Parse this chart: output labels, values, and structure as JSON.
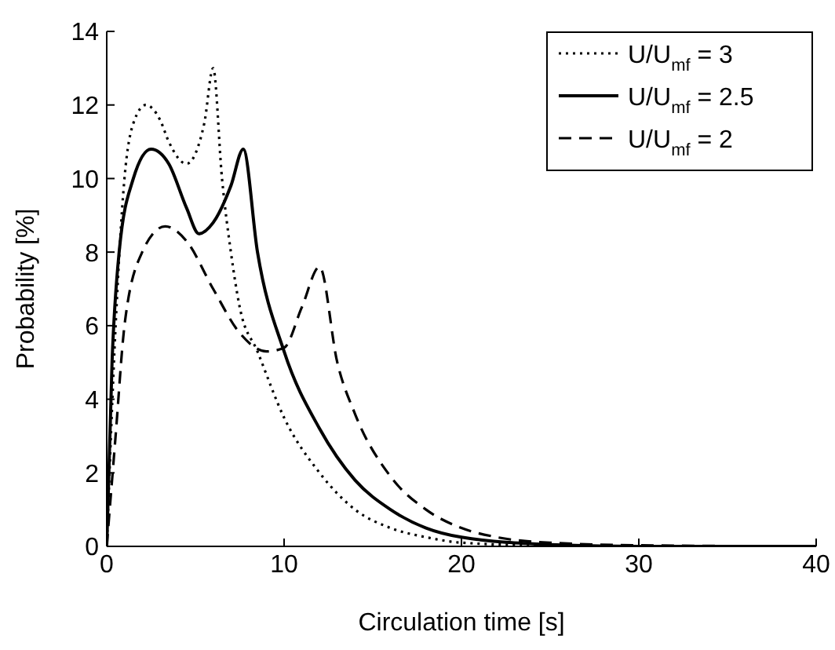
{
  "chart_data": {
    "type": "line",
    "xlabel": "Circulation time [s]",
    "ylabel": "Probability [%]",
    "xlim": [
      0,
      40
    ],
    "xticks": [
      0,
      10,
      20,
      30,
      40
    ],
    "ylim": [
      0,
      14
    ],
    "yticks": [
      0,
      2,
      4,
      6,
      8,
      10,
      12,
      14
    ],
    "legend": "top right",
    "marker": "none",
    "series": [
      {
        "name": "U/U$_{mf}$ = 3",
        "color": "#000000",
        "line_style": "dotted",
        "x": [
          0,
          0.5,
          1,
          1.5,
          2.2,
          3,
          3.5,
          4.5,
          5.5,
          6,
          6.5,
          7,
          7.5,
          8.5,
          10,
          12,
          14,
          16,
          18,
          20,
          25,
          30,
          40
        ],
        "values": [
          0,
          6,
          10,
          11.5,
          12,
          11.6,
          11,
          10.4,
          11.5,
          13,
          10,
          8,
          6.5,
          5.3,
          3.5,
          2,
          1,
          0.5,
          0.25,
          0.1,
          0.02,
          0,
          0
        ]
      },
      {
        "name": "U/U$_{mf}$ = 2.5",
        "color": "#000000",
        "line_style": "solid",
        "x": [
          0,
          0.3,
          0.7,
          1.5,
          2.5,
          3.5,
          4.5,
          5.2,
          6,
          7,
          7.7,
          8.5,
          10,
          12,
          14,
          16,
          18,
          20,
          25,
          30,
          40
        ],
        "values": [
          0,
          5,
          8,
          10,
          10.8,
          10.4,
          9.2,
          8.5,
          8.8,
          9.8,
          10.8,
          8,
          5.3,
          3.2,
          1.8,
          1,
          0.5,
          0.25,
          0.05,
          0,
          0
        ]
      },
      {
        "name": "U/U$_{mf}$ = 2",
        "color": "#000000",
        "line_style": "dashed",
        "x": [
          0,
          0.5,
          1,
          2,
          3.3,
          4.5,
          6,
          7.5,
          9,
          10,
          11,
          12,
          13,
          14,
          16,
          18,
          20,
          22,
          25,
          30,
          40
        ],
        "values": [
          0,
          3,
          6,
          8,
          8.7,
          8.3,
          7,
          5.8,
          5.3,
          5.4,
          6.5,
          7.6,
          5,
          3.6,
          1.9,
          1,
          0.5,
          0.25,
          0.1,
          0.03,
          0
        ]
      }
    ]
  }
}
